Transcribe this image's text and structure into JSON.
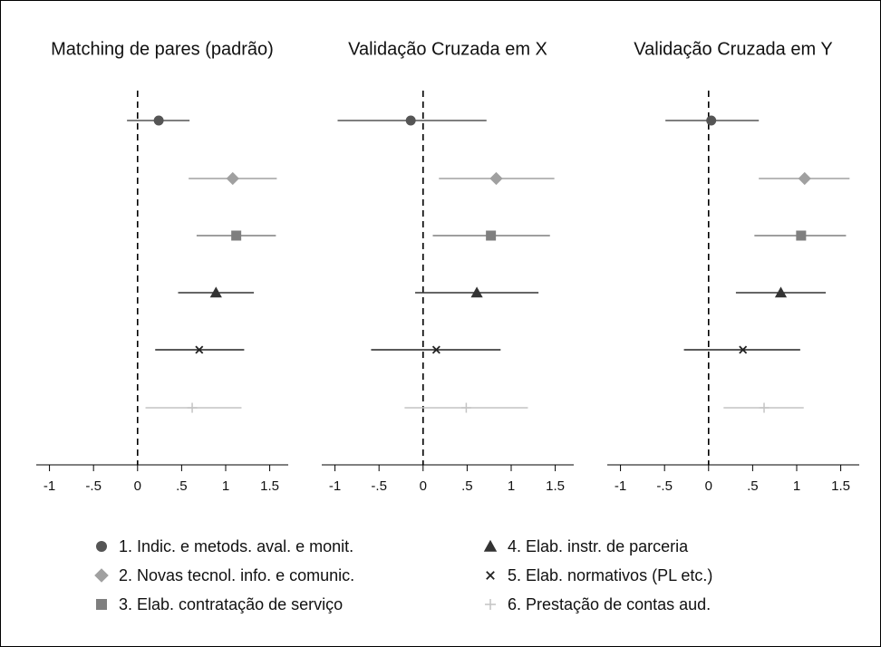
{
  "chart_data": [
    {
      "type": "dot-ci",
      "title": "Matching de pares (padrão)",
      "values": [
        0.24,
        1.08,
        1.12,
        0.89,
        0.7,
        0.62
      ],
      "ci_low": [
        -0.12,
        0.58,
        0.67,
        0.46,
        0.2,
        0.09
      ],
      "ci_high": [
        0.59,
        1.58,
        1.57,
        1.32,
        1.21,
        1.18
      ],
      "xlim": [
        -1.15,
        1.71
      ],
      "xticks": [
        -1,
        {
          "value": -0.5,
          "label": "-.5"
        },
        0,
        {
          "value": 0.5,
          "label": ".5"
        },
        1,
        1.5
      ],
      "refline": 0
    },
    {
      "type": "dot-ci",
      "title": "Validação Cruzada em X",
      "values": [
        -0.14,
        0.83,
        0.77,
        0.61,
        0.15,
        0.49
      ],
      "ci_low": [
        -0.97,
        0.18,
        0.11,
        -0.09,
        -0.59,
        -0.21
      ],
      "ci_high": [
        0.72,
        1.49,
        1.44,
        1.31,
        0.88,
        1.19
      ],
      "xlim": [
        -1.15,
        1.71
      ],
      "xticks": [
        -1,
        {
          "value": -0.5,
          "label": "-.5"
        },
        0,
        {
          "value": 0.5,
          "label": ".5"
        },
        1,
        1.5
      ],
      "refline": 0
    },
    {
      "type": "dot-ci",
      "title": "Validação Cruzada em Y",
      "values": [
        0.03,
        1.09,
        1.05,
        0.82,
        0.39,
        0.63
      ],
      "ci_low": [
        -0.49,
        0.57,
        0.52,
        0.31,
        -0.28,
        0.17
      ],
      "ci_high": [
        0.57,
        1.6,
        1.56,
        1.33,
        1.04,
        1.08
      ],
      "xlim": [
        -1.15,
        1.71
      ],
      "xticks": [
        -1,
        {
          "value": -0.5,
          "label": "-.5"
        },
        0,
        {
          "value": 0.5,
          "label": ".5"
        },
        1,
        1.5
      ],
      "refline": 0
    }
  ],
  "legend": {
    "series": [
      {
        "name": "1. Indic. e metods. aval. e monit.",
        "color": "#555555",
        "marker": "circle"
      },
      {
        "name": "2. Novas tecnol. info. e comunic.",
        "color": "#a0a0a0",
        "marker": "diamond"
      },
      {
        "name": "3. Elab. contratação de serviço",
        "color": "#7f7f7f",
        "marker": "square"
      },
      {
        "name": "4. Elab. instr. de  parceria",
        "color": "#333333",
        "marker": "triangle"
      },
      {
        "name": "5. Elab. normativos (PL etc.)",
        "color": "#222222",
        "marker": "cross"
      },
      {
        "name": "6. Prestação de contas aud.",
        "color": "#c4c4c4",
        "marker": "plus"
      }
    ]
  }
}
